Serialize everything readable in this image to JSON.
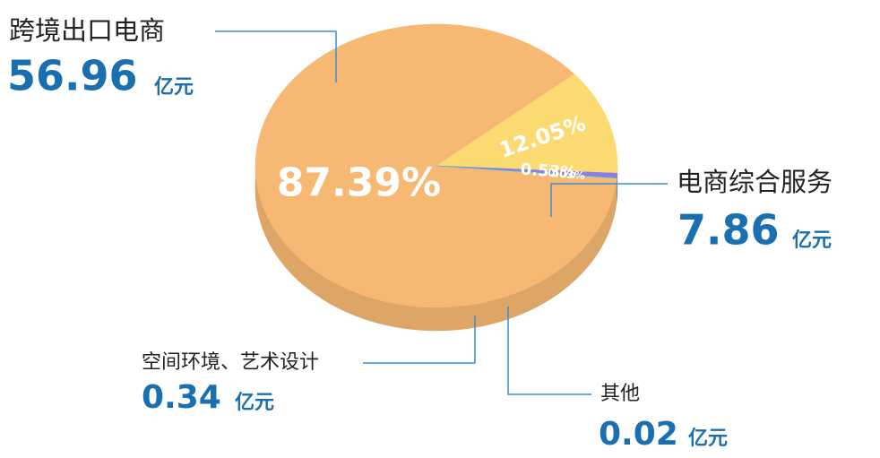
{
  "chart_data": {
    "type": "pie",
    "categories": [
      "跨境出口电商",
      "电商综合服务",
      "空间环境、艺术设计",
      "其他"
    ],
    "values": [
      87.39,
      12.05,
      0.53,
      0.03
    ],
    "value_labels": [
      "87.39%",
      "12.05%",
      "0.53%",
      "0.03%"
    ],
    "amounts": [
      56.96,
      7.86,
      0.34,
      0.02
    ],
    "unit": "亿元",
    "colors": [
      "#f6b872",
      "#fbda72",
      "#8c7de6",
      "#2fc3ef"
    ]
  }
}
